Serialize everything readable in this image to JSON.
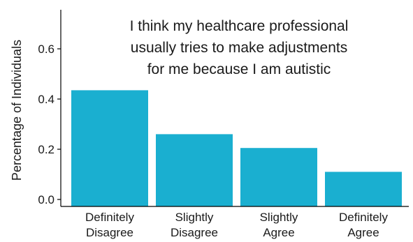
{
  "chart_data": {
    "type": "bar",
    "title_lines": [
      "I think my healthcare professional",
      "usually tries to make adjustments",
      "for me because I am autistic"
    ],
    "ylabel": "Percentage of Individuals",
    "xlabel": "",
    "categories": [
      [
        "Definitely",
        "Disagree"
      ],
      [
        "Slightly",
        "Disagree"
      ],
      [
        "Slightly",
        "Agree"
      ],
      [
        "Definitely",
        "Agree"
      ]
    ],
    "values": [
      0.435,
      0.26,
      0.205,
      0.11
    ],
    "ylim": [
      0,
      0.72
    ],
    "yticks": [
      0.0,
      0.2,
      0.4,
      0.6
    ],
    "ytick_labels": [
      "0.0",
      "0.2",
      "0.4",
      "0.6"
    ],
    "bar_color": "#1aafd0",
    "grid": false,
    "legend": "none"
  }
}
